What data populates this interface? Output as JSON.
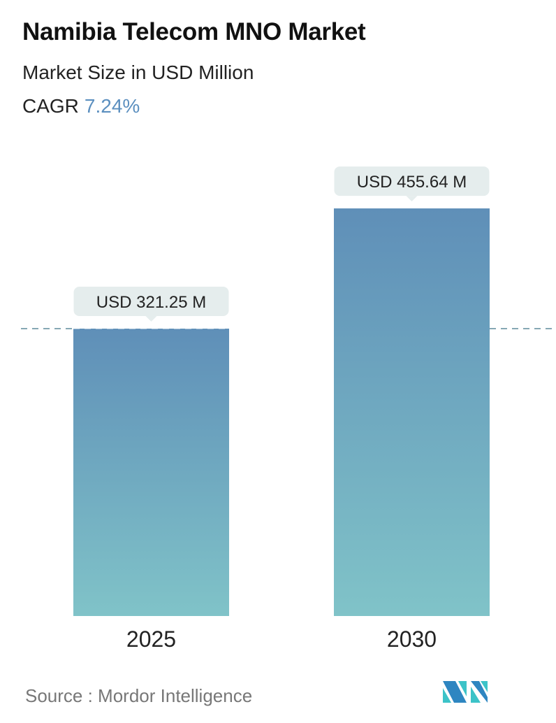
{
  "title": "Namibia Telecom MNO Market",
  "subtitle": "Market Size in USD Million",
  "cagr": {
    "label": "CAGR",
    "value": "7.24%"
  },
  "source": "Source :  Mordor Intelligence",
  "logo_text": "Mordor Intelligence",
  "colors": {
    "bar_top": "#5f8fb8",
    "bar_bottom": "#80c3c8",
    "accent": "#5b8fbf",
    "callout": "#e5eded",
    "dashed_line": "#5f8a9c"
  },
  "chart_data": {
    "type": "bar",
    "categories": [
      "2025",
      "2030"
    ],
    "values": [
      321.25,
      455.64
    ],
    "data_labels": [
      "USD 321.25 M",
      "USD 455.64 M"
    ],
    "title": "Namibia Telecom MNO Market",
    "subtitle": "Market Size in USD Million",
    "xlabel": "",
    "ylabel": "",
    "grid": false,
    "reference_line": 321.25
  }
}
